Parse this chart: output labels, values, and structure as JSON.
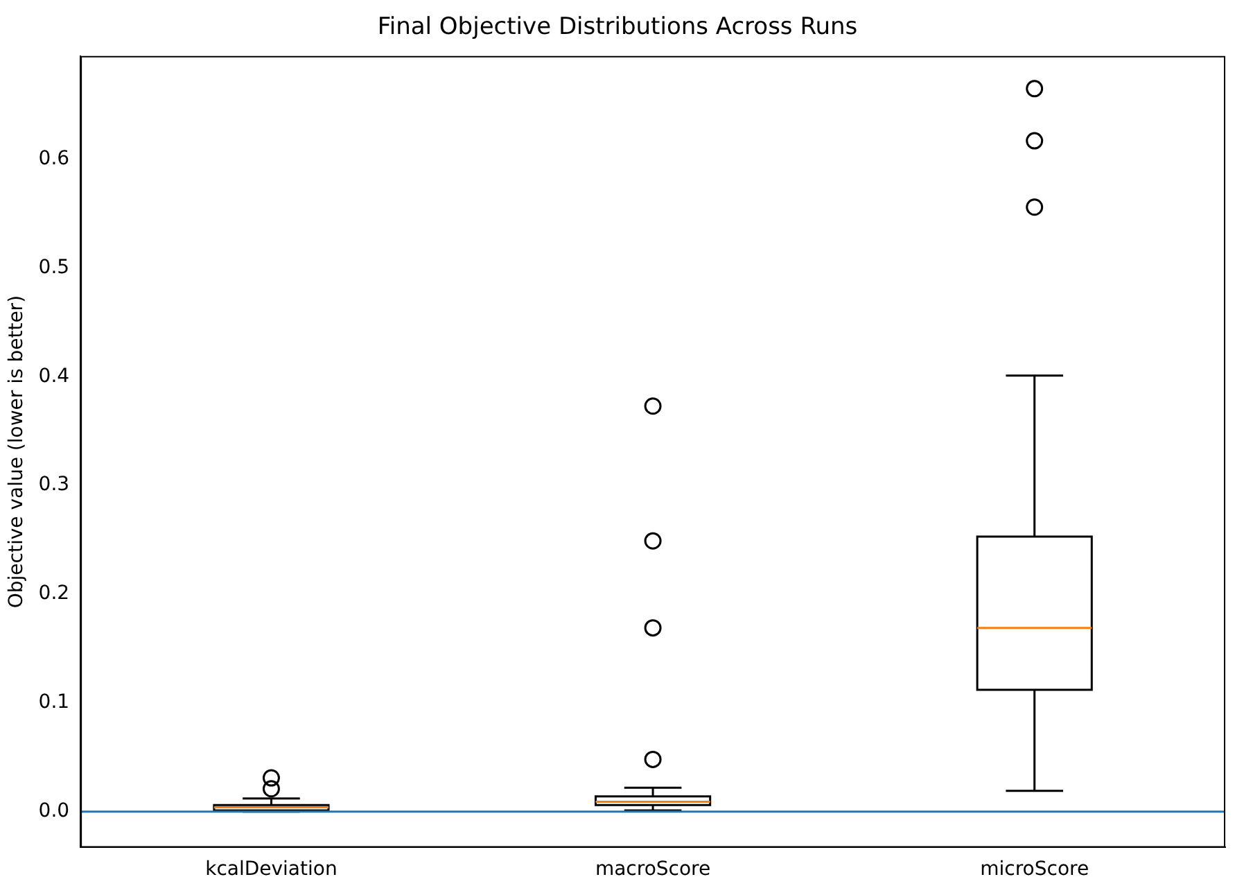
{
  "chart_data": {
    "type": "box",
    "title": "Final Objective Distributions Across Runs",
    "ylabel": "Objective value (lower is better)",
    "categories": [
      "kcalDeviation",
      "macroScore",
      "microScore"
    ],
    "boxes": [
      {
        "low": 0,
        "q1": 0.001,
        "median": 0.004,
        "q3": 0.006,
        "high": 0.012,
        "outliers": [
          0.021,
          0.031
        ]
      },
      {
        "low": 0.001,
        "q1": 0.006,
        "median": 0.009,
        "q3": 0.014,
        "high": 0.022,
        "outliers": [
          0.048,
          0.169,
          0.249,
          0.373
        ]
      },
      {
        "low": 0.019,
        "q1": 0.112,
        "median": 0.169,
        "q3": 0.253,
        "high": 0.401,
        "outliers": [
          0.556,
          0.617,
          0.665
        ]
      }
    ],
    "color": "#000000",
    "ylim": [
      -0.033,
      0.695
    ],
    "yticks": [
      {
        "value": 0,
        "label": "0.0"
      },
      {
        "value": 0.1,
        "label": "0.1"
      },
      {
        "value": 0.2,
        "label": "0.2"
      },
      {
        "value": 0.3,
        "label": "0.3"
      },
      {
        "value": 0.4,
        "label": "0.4"
      },
      {
        "value": 0.5,
        "label": "0.5"
      },
      {
        "value": 0.6,
        "label": "0.6"
      }
    ],
    "ref_lines": [
      {
        "axis": "y",
        "value": 0,
        "color": "#1f77b4"
      }
    ],
    "grid": false,
    "legend": false,
    "marker": "circle"
  }
}
